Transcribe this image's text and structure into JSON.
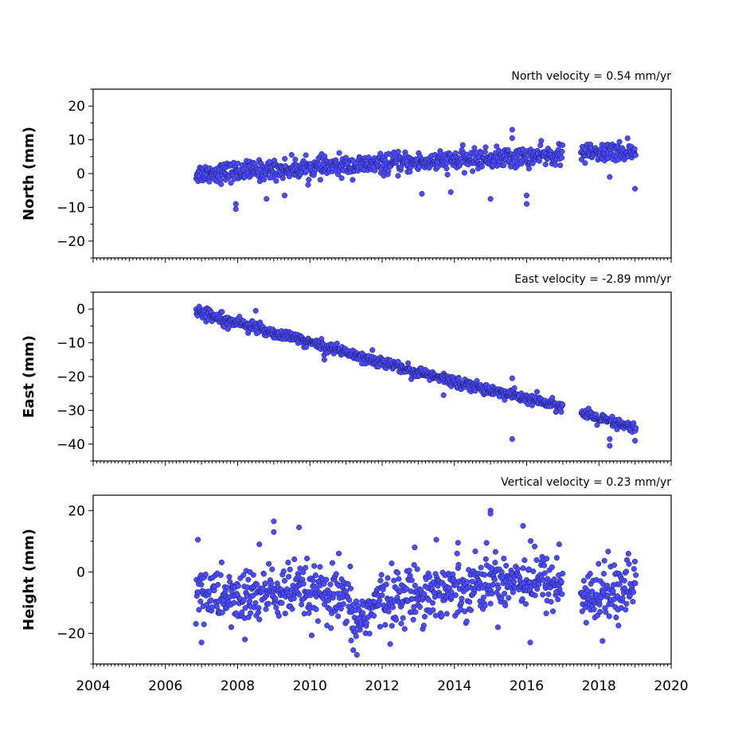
{
  "chart_data": [
    {
      "type": "scatter",
      "title": "North velocity = 0.54 mm/yr",
      "ylabel": "North (mm)",
      "ylim": [
        -25,
        25
      ],
      "yticks": [
        -20,
        -10,
        0,
        10,
        20
      ],
      "xlim": [
        2004,
        2020
      ],
      "rate": 0.54,
      "offset": 0.0,
      "noise": 1.6,
      "series": [
        {
          "x": [
            2006.85,
            2007.5,
            2008.0,
            2009.0,
            2010.0,
            2011.0,
            2012.0,
            2013.0,
            2014.0,
            2015.0,
            2016.0,
            2016.99,
            2017.5,
            2018.0,
            2018.5,
            2019.02
          ],
          "values": [
            0.0,
            0.3,
            0.6,
            1.1,
            1.7,
            2.2,
            2.8,
            3.3,
            3.9,
            4.4,
            4.9,
            5.5,
            5.8,
            6.0,
            6.3,
            6.6
          ]
        }
      ],
      "outliers": [
        {
          "x": 2007.95,
          "y": -10.5
        },
        {
          "x": 2007.95,
          "y": -9.0
        },
        {
          "x": 2008.8,
          "y": -7.5
        },
        {
          "x": 2009.3,
          "y": -6.5
        },
        {
          "x": 2013.1,
          "y": -6.0
        },
        {
          "x": 2013.9,
          "y": -5.5
        },
        {
          "x": 2015.0,
          "y": -7.5
        },
        {
          "x": 2015.6,
          "y": 13.0
        },
        {
          "x": 2015.6,
          "y": 10.5
        },
        {
          "x": 2016.0,
          "y": -9.0
        },
        {
          "x": 2016.0,
          "y": -6.5
        },
        {
          "x": 2018.3,
          "y": -1.0
        },
        {
          "x": 2019.0,
          "y": -4.5
        }
      ]
    },
    {
      "type": "scatter",
      "title": "East velocity = -2.89 mm/yr",
      "ylabel": "East (mm)",
      "ylim": [
        -45,
        5
      ],
      "yticks": [
        -40,
        -30,
        -20,
        -10,
        0
      ],
      "xlim": [
        2004,
        2020
      ],
      "rate": -2.89,
      "offset": 0.0,
      "noise": 0.9,
      "series": [
        {
          "x": [
            2006.85,
            2007.5,
            2008.0,
            2009.0,
            2010.0,
            2011.0,
            2012.0,
            2013.0,
            2014.0,
            2015.0,
            2016.0,
            2016.99,
            2017.5,
            2018.0,
            2018.5,
            2019.02
          ],
          "values": [
            -0.5,
            -2.5,
            -4.0,
            -7.0,
            -9.8,
            -12.8,
            -15.8,
            -18.8,
            -21.5,
            -24.0,
            -26.5,
            -29.0,
            -31.0,
            -32.5,
            -34.0,
            -35.5
          ]
        }
      ],
      "outliers": [
        {
          "x": 2015.6,
          "y": -38.5
        },
        {
          "x": 2015.6,
          "y": -20.5
        },
        {
          "x": 2018.3,
          "y": -40.5
        },
        {
          "x": 2018.3,
          "y": -38.5
        },
        {
          "x": 2019.0,
          "y": -39.0
        },
        {
          "x": 2008.5,
          "y": -0.5
        },
        {
          "x": 2010.4,
          "y": -15.0
        },
        {
          "x": 2013.7,
          "y": -25.5
        }
      ]
    },
    {
      "type": "scatter",
      "title": "Vertical velocity = 0.23 mm/yr",
      "ylabel": "Height (mm)",
      "ylim": [
        -30,
        25
      ],
      "yticks": [
        -20,
        0,
        20
      ],
      "xlim": [
        2004,
        2020
      ],
      "rate": 0.23,
      "offset": -7.5,
      "noise": 5.0,
      "series": [
        {
          "x": [
            2006.85,
            2007.5,
            2008.0,
            2009.0,
            2010.0,
            2011.0,
            2011.3,
            2012.0,
            2013.0,
            2014.0,
            2015.0,
            2016.0,
            2016.99,
            2017.5,
            2018.0,
            2018.5,
            2019.02
          ],
          "values": [
            -6.0,
            -8.0,
            -9.0,
            -6.5,
            -7.0,
            -10.0,
            -16.0,
            -9.0,
            -7.0,
            -5.5,
            -3.0,
            -2.0,
            -4.0,
            -9.0,
            -8.5,
            -5.0,
            -4.0
          ]
        }
      ],
      "outliers": [
        {
          "x": 2006.9,
          "y": 10.5
        },
        {
          "x": 2008.6,
          "y": 9.0
        },
        {
          "x": 2009.0,
          "y": 16.5
        },
        {
          "x": 2009.0,
          "y": 13.0
        },
        {
          "x": 2009.7,
          "y": 14.5
        },
        {
          "x": 2010.8,
          "y": 6.0
        },
        {
          "x": 2011.3,
          "y": -27.0
        },
        {
          "x": 2011.2,
          "y": -25.5
        },
        {
          "x": 2012.9,
          "y": 8.0
        },
        {
          "x": 2013.5,
          "y": 10.5
        },
        {
          "x": 2014.1,
          "y": 9.5
        },
        {
          "x": 2015.0,
          "y": 20.0
        },
        {
          "x": 2015.0,
          "y": 19.0
        },
        {
          "x": 2015.9,
          "y": 15.0
        },
        {
          "x": 2016.1,
          "y": -23.0
        },
        {
          "x": 2016.9,
          "y": 9.0
        },
        {
          "x": 2018.1,
          "y": -22.5
        },
        {
          "x": 2007.0,
          "y": -23.0
        },
        {
          "x": 2008.2,
          "y": -22.0
        }
      ]
    }
  ],
  "xaxis": {
    "tick_labels": [
      "2004",
      "2006",
      "2008",
      "2010",
      "2012",
      "2014",
      "2016",
      "2018",
      "2020"
    ]
  },
  "data_gap": [
    2017.0,
    2017.5
  ],
  "style": {
    "marker_fill": "#4b4bff",
    "marker_edge": "#1a1a55"
  }
}
